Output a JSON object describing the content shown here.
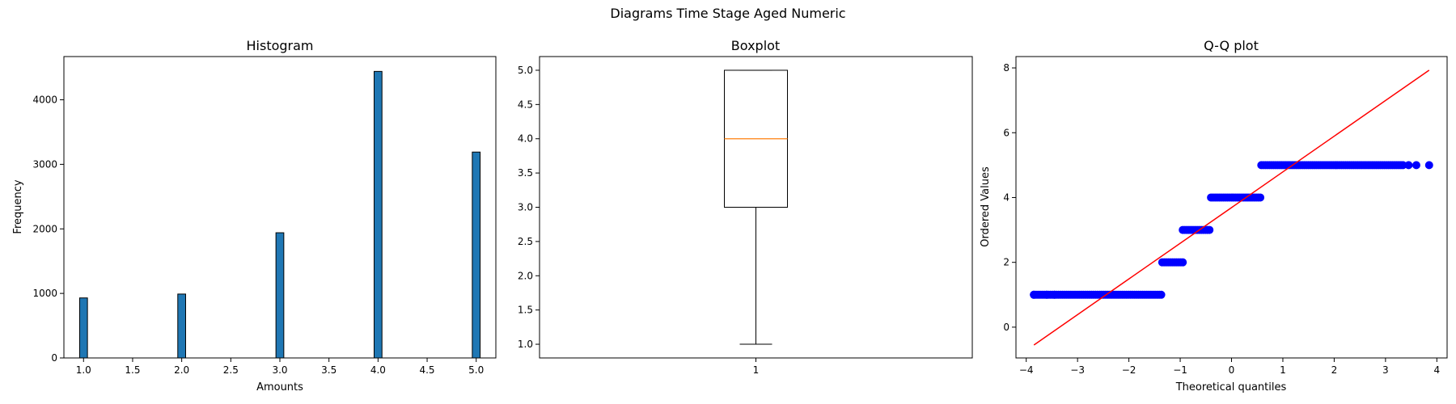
{
  "suptitle": "Diagrams Time Stage Aged Numeric",
  "chart_data": [
    {
      "type": "bar",
      "title": "Histogram",
      "xlabel": "Amounts",
      "ylabel": "Frequency",
      "xlim": [
        0.8,
        5.2
      ],
      "ylim": [
        0,
        4670
      ],
      "x_ticks": [
        "1.0",
        "1.5",
        "2.0",
        "2.5",
        "3.0",
        "3.5",
        "4.0",
        "4.5",
        "5.0"
      ],
      "y_ticks": [
        "0",
        "1000",
        "2000",
        "3000",
        "4000"
      ],
      "bin_width": 0.08,
      "bar_color": "#1f77b4",
      "categories": [
        1,
        2,
        3,
        4,
        5
      ],
      "values": [
        930,
        990,
        1940,
        4440,
        3190
      ]
    },
    {
      "type": "box",
      "title": "Boxplot",
      "ylim": [
        0.8,
        5.2
      ],
      "x_ticks": [
        "1"
      ],
      "y_ticks": [
        "1.0",
        "1.5",
        "2.0",
        "2.5",
        "3.0",
        "3.5",
        "4.0",
        "4.5",
        "5.0"
      ],
      "median_color": "#ff7f0e",
      "box": {
        "label": "1",
        "whisker_low": 1.0,
        "q1": 3.0,
        "median": 4.0,
        "q3": 5.0,
        "whisker_high": 5.0
      }
    },
    {
      "type": "scatter",
      "title": "Q-Q plot",
      "xlabel": "Theoretical quantiles",
      "ylabel": "Ordered Values",
      "xlim": [
        -4.2,
        4.2
      ],
      "ylim": [
        -0.95,
        8.35
      ],
      "x_ticks": [
        "−4",
        "−3",
        "−2",
        "−1",
        "0",
        "1",
        "2",
        "3",
        "4"
      ],
      "y_ticks": [
        "0",
        "2",
        "4",
        "6",
        "8"
      ],
      "point_color": "#0000ff",
      "line_color": "#ff0000",
      "fit_line": {
        "x": [
          -3.85,
          3.85
        ],
        "y": [
          -0.55,
          7.93
        ]
      },
      "groups": [
        {
          "value": 1,
          "x_from": -3.85,
          "x_to": -1.35,
          "outliers_x": [
            -3.85,
            -3.6,
            -3.45
          ]
        },
        {
          "value": 2,
          "x_from": -1.35,
          "x_to": -0.95,
          "outliers_x": []
        },
        {
          "value": 3,
          "x_from": -0.95,
          "x_to": -0.4,
          "outliers_x": []
        },
        {
          "value": 4,
          "x_from": -0.4,
          "x_to": 0.58,
          "outliers_x": []
        },
        {
          "value": 5,
          "x_from": 0.58,
          "x_to": 3.35,
          "outliers_x": [
            3.45,
            3.6,
            3.85
          ]
        }
      ]
    }
  ]
}
